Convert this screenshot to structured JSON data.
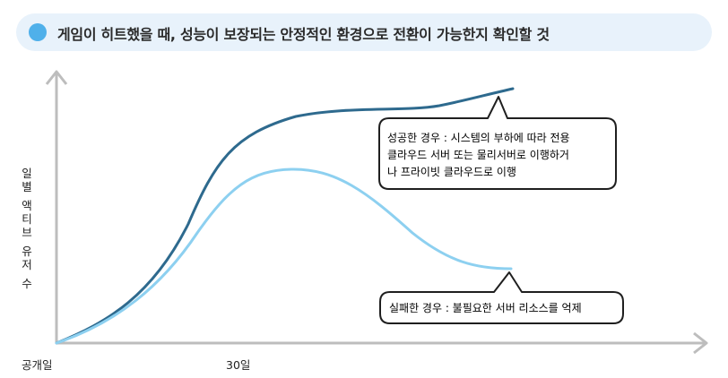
{
  "header": {
    "title": "게임이 히트했을 때, 성능이 보장되는 안정적인 환경으로 전환이 가능한지 확인할 것"
  },
  "chart_data": {
    "type": "line",
    "ylabel": "일별 액티브 유저 수",
    "x_ticks": [
      "공개일",
      "30일"
    ],
    "series": [
      {
        "name": "",
        "color": "#2e6a8e",
        "points": [
          [
            0,
            0
          ],
          [
            20,
            10
          ],
          [
            40,
            30
          ],
          [
            60,
            52
          ],
          [
            80,
            70
          ],
          [
            100,
            79
          ],
          [
            120,
            83
          ],
          [
            140,
            85
          ],
          [
            160,
            86
          ],
          [
            180,
            88
          ],
          [
            200,
            90
          ],
          [
            220,
            92
          ]
        ]
      },
      {
        "name": "",
        "color": "#8dd0f0",
        "points": [
          [
            0,
            0
          ],
          [
            20,
            8
          ],
          [
            40,
            22
          ],
          [
            60,
            38
          ],
          [
            80,
            56
          ],
          [
            100,
            63
          ],
          [
            120,
            63
          ],
          [
            140,
            58
          ],
          [
            160,
            46
          ],
          [
            180,
            35
          ],
          [
            200,
            28
          ],
          [
            220,
            27
          ]
        ]
      }
    ],
    "annotations": [
      {
        "label": "성공한 경우 : 시스템의 부하에 따라 전용 클라우드 서버 또는 물리서버로 이행하거나 프라이빗 클라우드로 이행",
        "lines": [
          "성공한 경우 : 시스템의 부하에 따라 전용",
          "클라우드 서버 또는 물리서버로 이행하거",
          "나 프라이빗 클라우드로 이행"
        ]
      },
      {
        "label": "실패한 경우 : 불필요한 서버 리소스를 억제",
        "lines": [
          "실패한 경우 : 불필요한 서버 리소스를 억제"
        ]
      }
    ]
  }
}
